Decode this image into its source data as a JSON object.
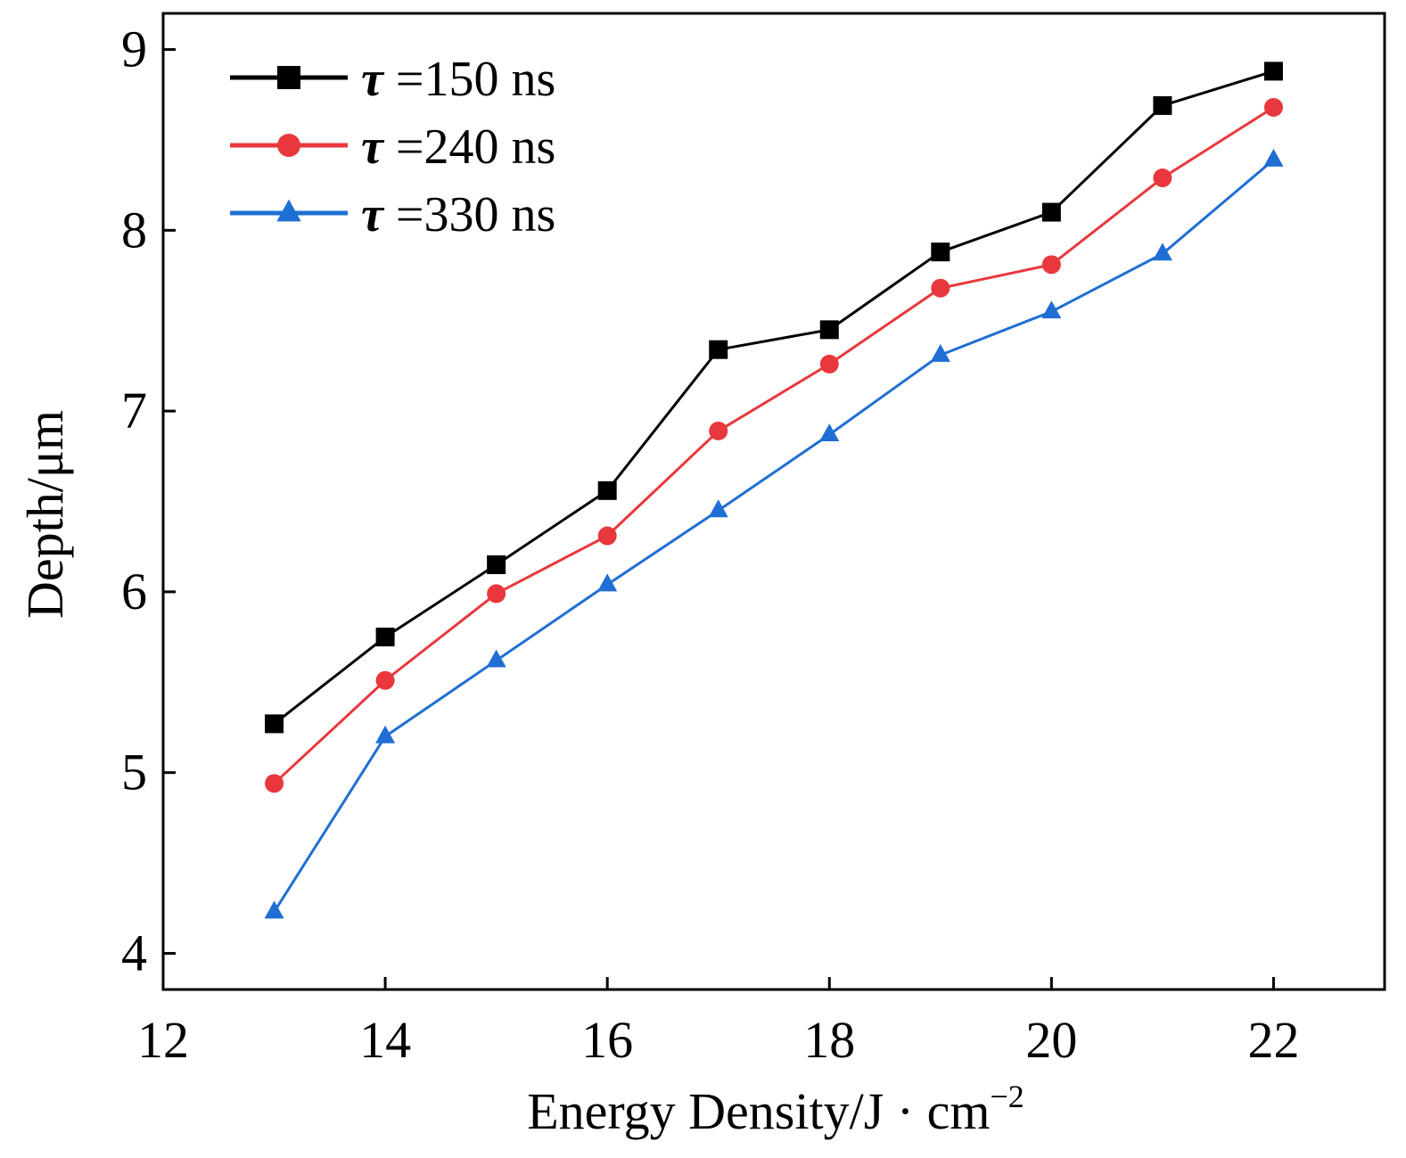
{
  "chart_data": {
    "type": "line",
    "title": "",
    "xlabel": "Energy Density/J · cm",
    "xlabel_superscript": "−2",
    "ylabel": "Depth/μm",
    "xlim": [
      12,
      23
    ],
    "ylim": [
      3.8,
      9.2
    ],
    "x_ticks": [
      12,
      14,
      16,
      18,
      20,
      22
    ],
    "y_ticks": [
      4,
      5,
      6,
      7,
      8,
      9
    ],
    "grid": false,
    "legend_position": "top-left",
    "x": [
      13,
      14,
      15,
      16,
      17,
      18,
      19,
      20,
      21,
      22
    ],
    "series": [
      {
        "name": "τ =150 ns",
        "symbol": "τ",
        "label_rest": " =150 ns",
        "color": "#000000",
        "marker": "square",
        "values": [
          5.27,
          5.75,
          6.15,
          6.56,
          7.34,
          7.45,
          7.88,
          8.1,
          8.69,
          8.88
        ]
      },
      {
        "name": "τ =240 ns",
        "symbol": "τ",
        "label_rest": " =240 ns",
        "color": "#e8383d",
        "marker": "circle",
        "values": [
          4.94,
          5.51,
          5.99,
          6.31,
          6.89,
          7.26,
          7.68,
          7.81,
          8.29,
          8.68
        ]
      },
      {
        "name": "τ =330 ns",
        "symbol": "τ",
        "label_rest": " =330 ns",
        "color": "#1f6ed4",
        "marker": "triangle",
        "values": [
          4.23,
          5.2,
          5.62,
          6.04,
          6.45,
          6.87,
          7.31,
          7.55,
          7.87,
          8.39
        ]
      }
    ]
  }
}
